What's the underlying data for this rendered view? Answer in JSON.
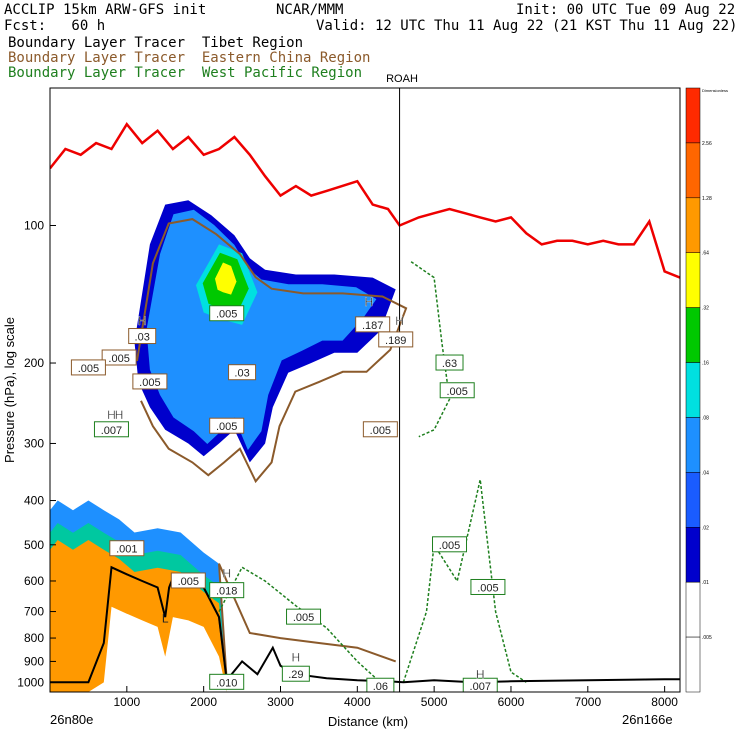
{
  "header": {
    "line1_left": "ACCLIP 15km ARW-GFS init",
    "line1_mid": "NCAR/MMM",
    "line1_right": "Init: 00 UTC Tue 09 Aug 22",
    "line2_left": "Fcst:   60 h",
    "line2_right": "Valid: 12 UTC Thu 11 Aug 22 (21 KST Thu 11 Aug 22)",
    "tracers": [
      {
        "label": "Boundary Layer Tracer  Tibet Region",
        "color": "#000000"
      },
      {
        "label": "Boundary Layer Tracer  Eastern China Region",
        "color": "#8B5A2B"
      },
      {
        "label": "Boundary Layer Tracer  West Pacific Region",
        "color": "#1E7F1E"
      }
    ]
  },
  "marker_label": "ROAH",
  "corner_left": "26n80e",
  "corner_right": "26n166e",
  "colorbar": {
    "title": "Dimensionless",
    "colors": [
      "#ffffff",
      "#ffffff",
      "#0000cc",
      "#1a5cff",
      "#1e90ff",
      "#00e0e0",
      "#00c800",
      "#ffff00",
      "#ff9900",
      "#ff6600",
      "#ff2a00"
    ],
    "labels": [
      ".005",
      ".01",
      ".02",
      ".04",
      ".08",
      ".16",
      ".32",
      ".64",
      "1.28",
      "2.56"
    ]
  },
  "chart_data": {
    "type": "cross-section",
    "xlabel": "Distance (km)",
    "ylabel": "Pressure (hPa), log scale",
    "xlim": [
      0,
      8200
    ],
    "ylim": [
      1050,
      50
    ],
    "yscale": "log",
    "x_ticks": [
      1000,
      2000,
      3000,
      4000,
      5000,
      6000,
      7000,
      8000
    ],
    "y_ticks": [
      100,
      200,
      300,
      400,
      500,
      600,
      700,
      800,
      900,
      1000
    ],
    "tick_labels_x": [
      "1000",
      "2000",
      "3000",
      "4000",
      "5000",
      "6000",
      "7000",
      "8000"
    ],
    "tick_labels_y": [
      "100",
      "200",
      "300",
      "400",
      "500",
      "600",
      "700",
      "800",
      "900",
      "1000"
    ],
    "marker_x": 4550,
    "tropopause": [
      [
        0,
        75
      ],
      [
        200,
        68
      ],
      [
        400,
        70
      ],
      [
        600,
        66
      ],
      [
        800,
        68
      ],
      [
        1000,
        60
      ],
      [
        1200,
        66
      ],
      [
        1400,
        62
      ],
      [
        1600,
        68
      ],
      [
        1800,
        64
      ],
      [
        2000,
        70
      ],
      [
        2200,
        68
      ],
      [
        2400,
        64
      ],
      [
        2600,
        70
      ],
      [
        2800,
        78
      ],
      [
        3000,
        86
      ],
      [
        3200,
        82
      ],
      [
        3400,
        86
      ],
      [
        3600,
        84
      ],
      [
        3800,
        82
      ],
      [
        4000,
        80
      ],
      [
        4200,
        90
      ],
      [
        4400,
        92
      ],
      [
        4550,
        100
      ],
      [
        4800,
        96
      ],
      [
        5000,
        94
      ],
      [
        5200,
        92
      ],
      [
        5400,
        94
      ],
      [
        5600,
        96
      ],
      [
        5800,
        98
      ],
      [
        6000,
        96
      ],
      [
        6200,
        104
      ],
      [
        6400,
        110
      ],
      [
        6600,
        108
      ],
      [
        6800,
        108
      ],
      [
        7000,
        110
      ],
      [
        7200,
        108
      ],
      [
        7400,
        110
      ],
      [
        7600,
        110
      ],
      [
        7800,
        98
      ],
      [
        8000,
        126
      ],
      [
        8200,
        130
      ]
    ],
    "terrain": [
      [
        0,
        1000
      ],
      [
        500,
        1000
      ],
      [
        700,
        820
      ],
      [
        800,
        560
      ],
      [
        1000,
        580
      ],
      [
        1200,
        600
      ],
      [
        1400,
        620
      ],
      [
        1500,
        720
      ],
      [
        1550,
        620
      ],
      [
        1600,
        590
      ],
      [
        1800,
        600
      ],
      [
        2000,
        620
      ],
      [
        2200,
        720
      ],
      [
        2300,
        990
      ],
      [
        2500,
        900
      ],
      [
        2700,
        960
      ],
      [
        2900,
        840
      ],
      [
        3000,
        920
      ],
      [
        3200,
        960
      ],
      [
        3600,
        980
      ],
      [
        4000,
        990
      ],
      [
        4400,
        995
      ],
      [
        4600,
        1000
      ],
      [
        5000,
        990
      ],
      [
        5500,
        1000
      ],
      [
        6000,
        995
      ],
      [
        7000,
        990
      ],
      [
        8000,
        985
      ],
      [
        8200,
        985
      ]
    ],
    "boundary_layer_fill": [
      [
        0,
        1000
      ],
      [
        500,
        1000
      ],
      [
        700,
        820
      ],
      [
        800,
        560
      ],
      [
        1000,
        580
      ],
      [
        1200,
        600
      ],
      [
        1400,
        620
      ],
      [
        1500,
        720
      ],
      [
        1600,
        590
      ],
      [
        1800,
        600
      ],
      [
        2000,
        620
      ],
      [
        2200,
        720
      ],
      [
        2300,
        990
      ],
      [
        2200,
        550
      ],
      [
        2000,
        520
      ],
      [
        1700,
        470
      ],
      [
        1400,
        460
      ],
      [
        1100,
        470
      ],
      [
        900,
        440
      ],
      [
        700,
        420
      ],
      [
        500,
        400
      ],
      [
        300,
        420
      ],
      [
        100,
        400
      ],
      [
        0,
        420
      ]
    ],
    "upper_plume": [
      [
        1100,
        180
      ],
      [
        1300,
        110
      ],
      [
        1500,
        90
      ],
      [
        1800,
        88
      ],
      [
        2100,
        95
      ],
      [
        2400,
        105
      ],
      [
        2600,
        118
      ],
      [
        2800,
        125
      ],
      [
        3200,
        128
      ],
      [
        3700,
        128
      ],
      [
        4200,
        130
      ],
      [
        4500,
        138
      ],
      [
        4300,
        170
      ],
      [
        4000,
        190
      ],
      [
        3700,
        190
      ],
      [
        3400,
        200
      ],
      [
        3100,
        210
      ],
      [
        2900,
        250
      ],
      [
        2800,
        300
      ],
      [
        2600,
        330
      ],
      [
        2400,
        280
      ],
      [
        2200,
        300
      ],
      [
        2000,
        320
      ],
      [
        1800,
        300
      ],
      [
        1500,
        280
      ],
      [
        1300,
        250
      ],
      [
        1150,
        220
      ]
    ],
    "plume_core": [
      [
        1900,
        135
      ],
      [
        2200,
        110
      ],
      [
        2500,
        115
      ],
      [
        2700,
        140
      ],
      [
        2500,
        165
      ],
      [
        2200,
        160
      ],
      [
        2000,
        155
      ]
    ],
    "contour_labels": [
      {
        "x": 900,
        "y": 195,
        "text": ".005",
        "series": "Eastern China"
      },
      {
        "x": 500,
        "y": 205,
        "text": ".005",
        "series": "Eastern China"
      },
      {
        "x": 1300,
        "y": 220,
        "text": ".005",
        "series": "Eastern China"
      },
      {
        "x": 1200,
        "y": 175,
        "text": ".03",
        "series": "Eastern China"
      },
      {
        "x": 2500,
        "y": 210,
        "text": ".03",
        "series": "Eastern China"
      },
      {
        "x": 2300,
        "y": 275,
        "text": ".005",
        "series": "Eastern China"
      },
      {
        "x": 4200,
        "y": 165,
        "text": ".187",
        "series": "Eastern China"
      },
      {
        "x": 4500,
        "y": 178,
        "text": ".189",
        "series": "Eastern China"
      },
      {
        "x": 4300,
        "y": 280,
        "text": ".005",
        "series": "Eastern China"
      },
      {
        "x": 1000,
        "y": 510,
        "text": ".001",
        "series": "Eastern China"
      },
      {
        "x": 1800,
        "y": 600,
        "text": ".005",
        "series": "Eastern China"
      },
      {
        "x": 2300,
        "y": 156,
        "text": ".005",
        "series": "West Pacific"
      },
      {
        "x": 5200,
        "y": 200,
        "text": ".63",
        "series": "West Pacific"
      },
      {
        "x": 5300,
        "y": 230,
        "text": ".005",
        "series": "West Pacific"
      },
      {
        "x": 5200,
        "y": 500,
        "text": ".005",
        "series": "West Pacific"
      },
      {
        "x": 5700,
        "y": 620,
        "text": ".005",
        "series": "West Pacific"
      },
      {
        "x": 2300,
        "y": 630,
        "text": ".018",
        "series": "West Pacific"
      },
      {
        "x": 3300,
        "y": 720,
        "text": ".005",
        "series": "West Pacific"
      },
      {
        "x": 3200,
        "y": 960,
        "text": ".29",
        "series": "West Pacific"
      },
      {
        "x": 2300,
        "y": 1000,
        "text": ".010",
        "series": "West Pacific"
      },
      {
        "x": 4300,
        "y": 1020,
        "text": ".06",
        "series": "West Pacific"
      },
      {
        "x": 5600,
        "y": 1020,
        "text": ".007",
        "series": "West Pacific"
      },
      {
        "x": 800,
        "y": 280,
        "text": ".007",
        "series": "West Pacific"
      }
    ],
    "highs": [
      {
        "x": 1200,
        "y": 165,
        "series": "Eastern China"
      },
      {
        "x": 800,
        "y": 265,
        "series": "West Pacific"
      },
      {
        "x": 900,
        "y": 265,
        "series": "West Pacific"
      },
      {
        "x": 4150,
        "y": 150,
        "series": "Eastern China"
      },
      {
        "x": 4550,
        "y": 165,
        "series": "Eastern China"
      },
      {
        "x": 2300,
        "y": 590,
        "series": "West Pacific"
      },
      {
        "x": 3200,
        "y": 900,
        "series": "West Pacific"
      },
      {
        "x": 5600,
        "y": 980,
        "series": "West Pacific"
      }
    ],
    "lows": [
      {
        "x": 1500,
        "y": 740,
        "series": "Eastern China"
      }
    ]
  }
}
